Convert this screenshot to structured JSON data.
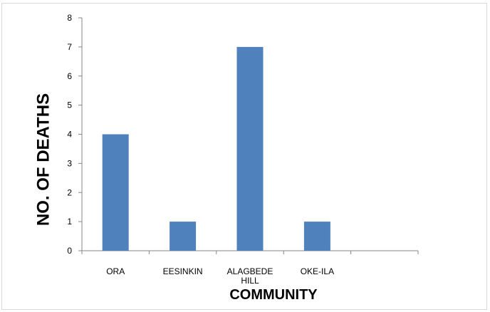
{
  "chart_data": {
    "type": "bar",
    "title": "",
    "xlabel": "COMMUNITY",
    "ylabel": "NO. OF DEATHS",
    "categories": [
      "ORA",
      "EESINKIN",
      "ALAGBEDE HILL",
      "OKE-ILA",
      ""
    ],
    "category_lines": [
      [
        "ORA"
      ],
      [
        "EESINKIN"
      ],
      [
        "ALAGBEDE",
        "HILL"
      ],
      [
        "OKE-ILA"
      ],
      []
    ],
    "values": [
      4,
      1,
      7,
      1,
      null
    ],
    "ylim": [
      0,
      8
    ],
    "yticks": [
      0,
      1,
      2,
      3,
      4,
      5,
      6,
      7,
      8
    ],
    "grid": false,
    "legend": "none",
    "bar_color": "#4f81bd"
  }
}
